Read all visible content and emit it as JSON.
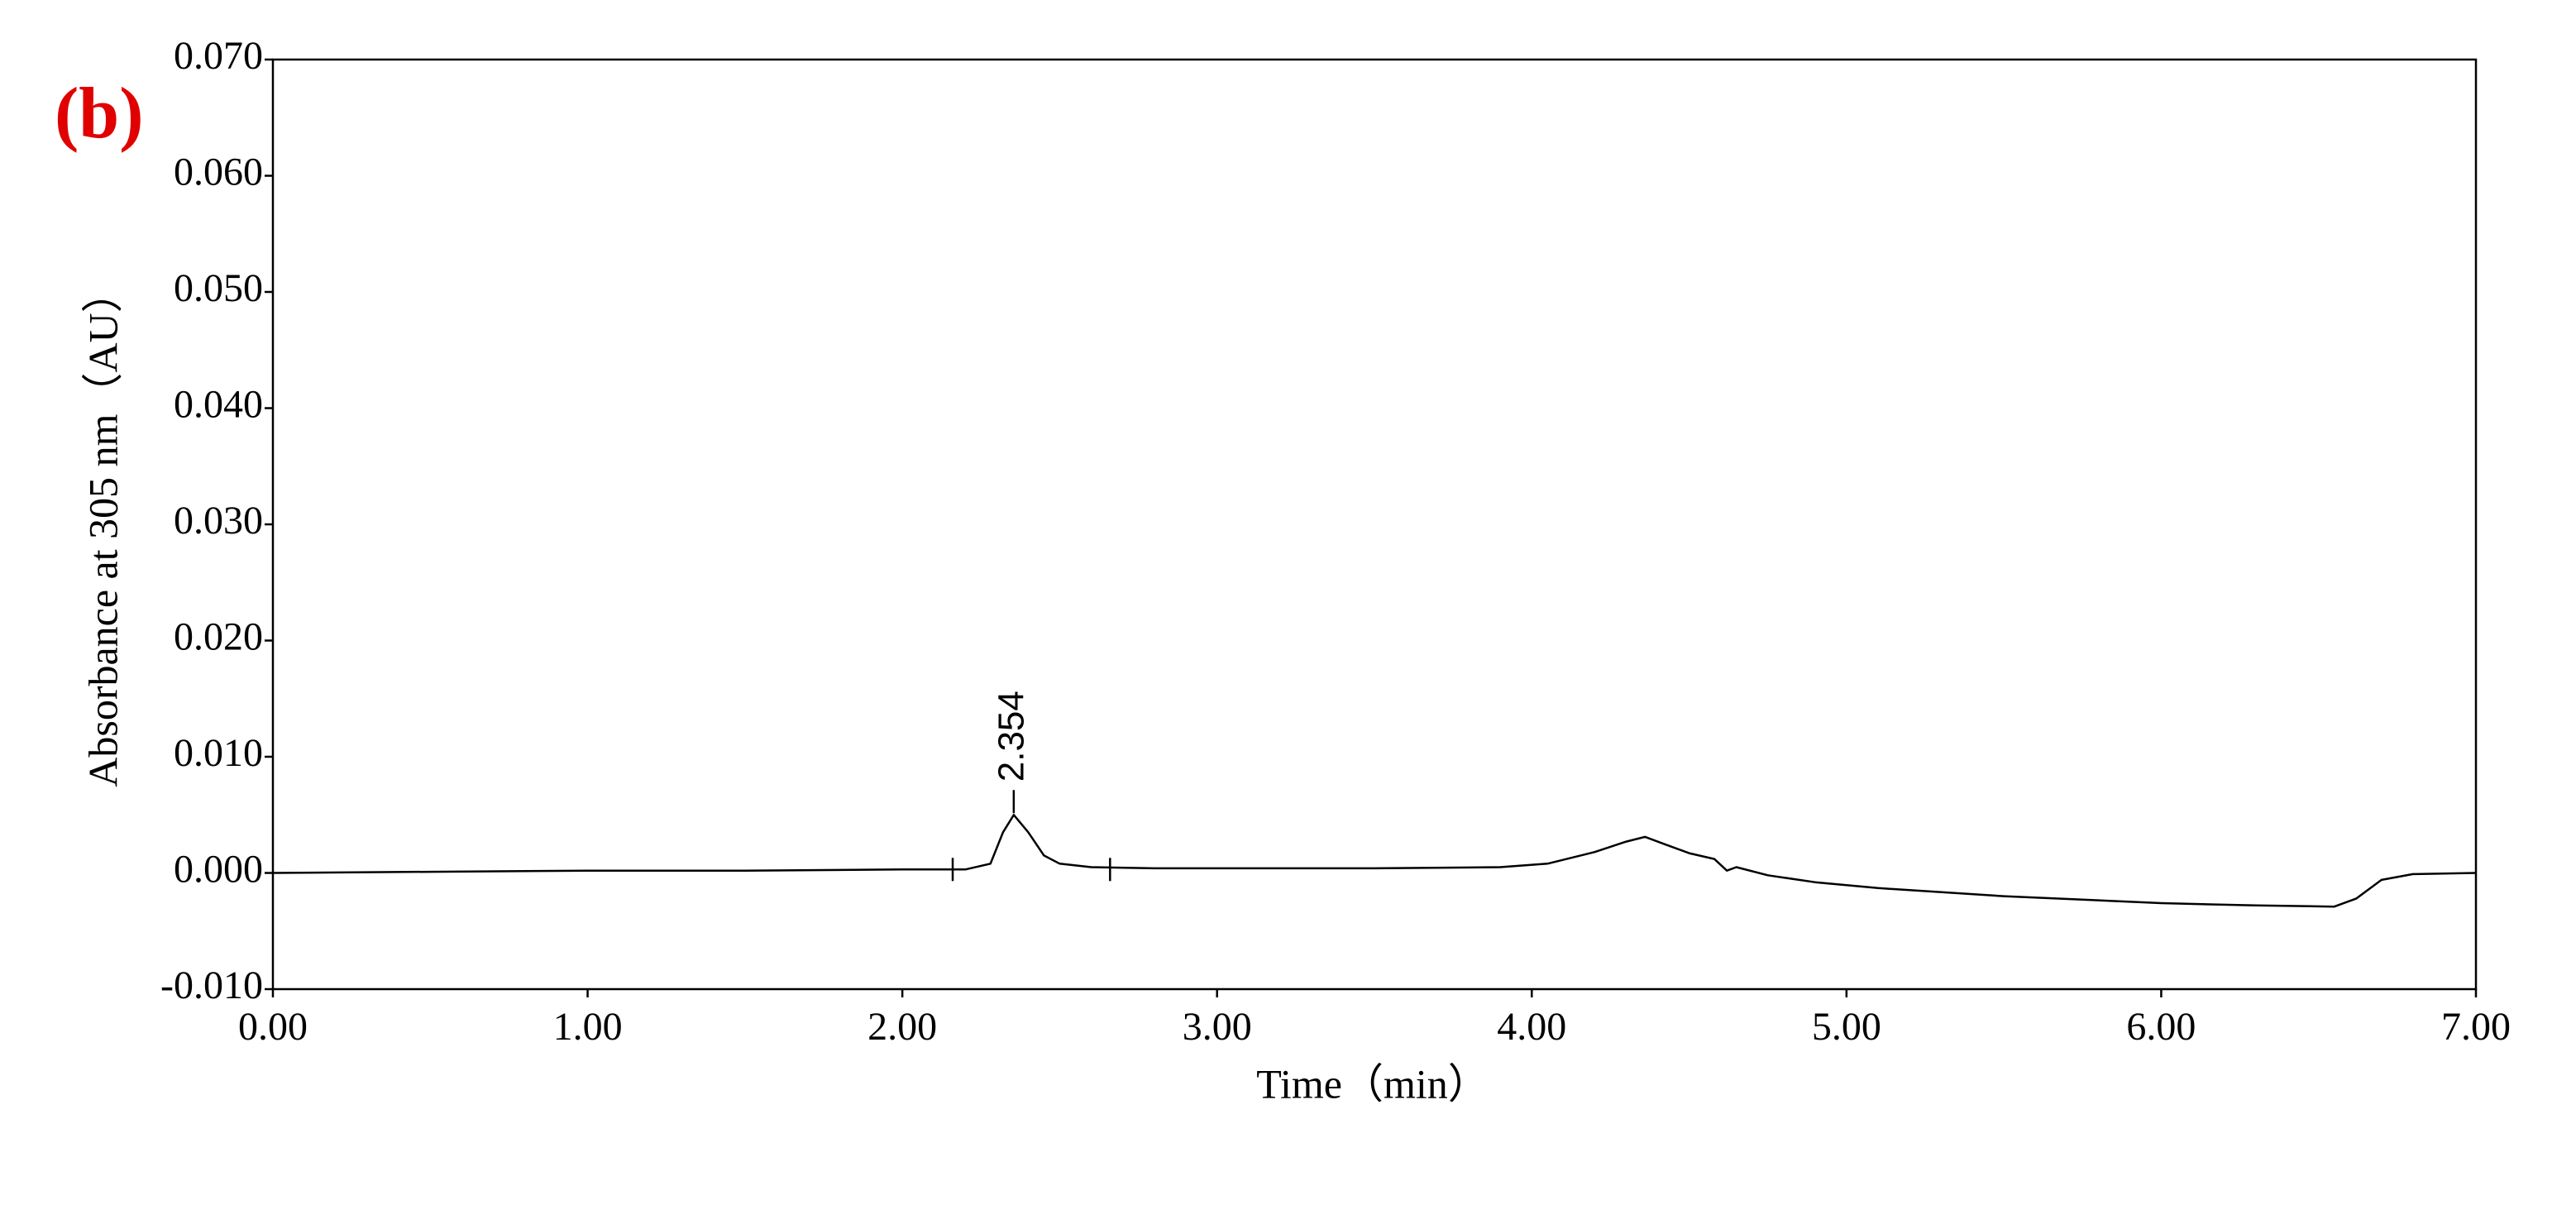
{
  "chart_data": {
    "type": "line",
    "panel_label": "(b)",
    "xlabel": "Time（min）",
    "ylabel": "Absorbance at 305 nm（AU）",
    "color": "#000000",
    "label_color": "#e00000",
    "x": [
      0.0,
      0.5,
      1.0,
      1.5,
      2.0,
      2.2,
      2.28,
      2.32,
      2.354,
      2.4,
      2.45,
      2.5,
      2.6,
      2.8,
      3.0,
      3.5,
      3.9,
      4.05,
      4.2,
      4.3,
      4.36,
      4.42,
      4.5,
      4.58,
      4.62,
      4.65,
      4.75,
      4.9,
      5.1,
      5.5,
      6.0,
      6.3,
      6.55,
      6.62,
      6.7,
      6.8,
      7.0
    ],
    "values": [
      0.0,
      0.0001,
      0.0002,
      0.0002,
      0.0003,
      0.0003,
      0.0008,
      0.0035,
      0.005,
      0.0035,
      0.0015,
      0.0008,
      0.0005,
      0.0004,
      0.0004,
      0.0004,
      0.0005,
      0.0008,
      0.0018,
      0.0027,
      0.0031,
      0.0025,
      0.0017,
      0.0012,
      0.0002,
      0.0005,
      -0.0002,
      -0.0008,
      -0.0013,
      -0.002,
      -0.0026,
      -0.0028,
      -0.0029,
      -0.0022,
      -0.0006,
      -0.0001,
      0.0
    ],
    "integration_marks": [
      2.16,
      2.66
    ],
    "peak_annotation": {
      "text": "2.354",
      "x": 2.354,
      "y": 0.005
    },
    "xlim": [
      0,
      7
    ],
    "ylim": [
      -0.01,
      0.07
    ],
    "xticks": [
      {
        "value": 0,
        "label": "0.00"
      },
      {
        "value": 1,
        "label": "1.00"
      },
      {
        "value": 2,
        "label": "2.00"
      },
      {
        "value": 3,
        "label": "3.00"
      },
      {
        "value": 4,
        "label": "4.00"
      },
      {
        "value": 5,
        "label": "5.00"
      },
      {
        "value": 6,
        "label": "6.00"
      },
      {
        "value": 7,
        "label": "7.00"
      }
    ],
    "yticks": [
      {
        "value": -0.01,
        "label": "-0.010"
      },
      {
        "value": 0,
        "label": "0.000"
      },
      {
        "value": 0.01,
        "label": "0.010"
      },
      {
        "value": 0.02,
        "label": "0.020"
      },
      {
        "value": 0.03,
        "label": "0.030"
      },
      {
        "value": 0.04,
        "label": "0.040"
      },
      {
        "value": 0.05,
        "label": "0.050"
      },
      {
        "value": 0.06,
        "label": "0.060"
      },
      {
        "value": 0.07,
        "label": "0.070"
      }
    ]
  }
}
